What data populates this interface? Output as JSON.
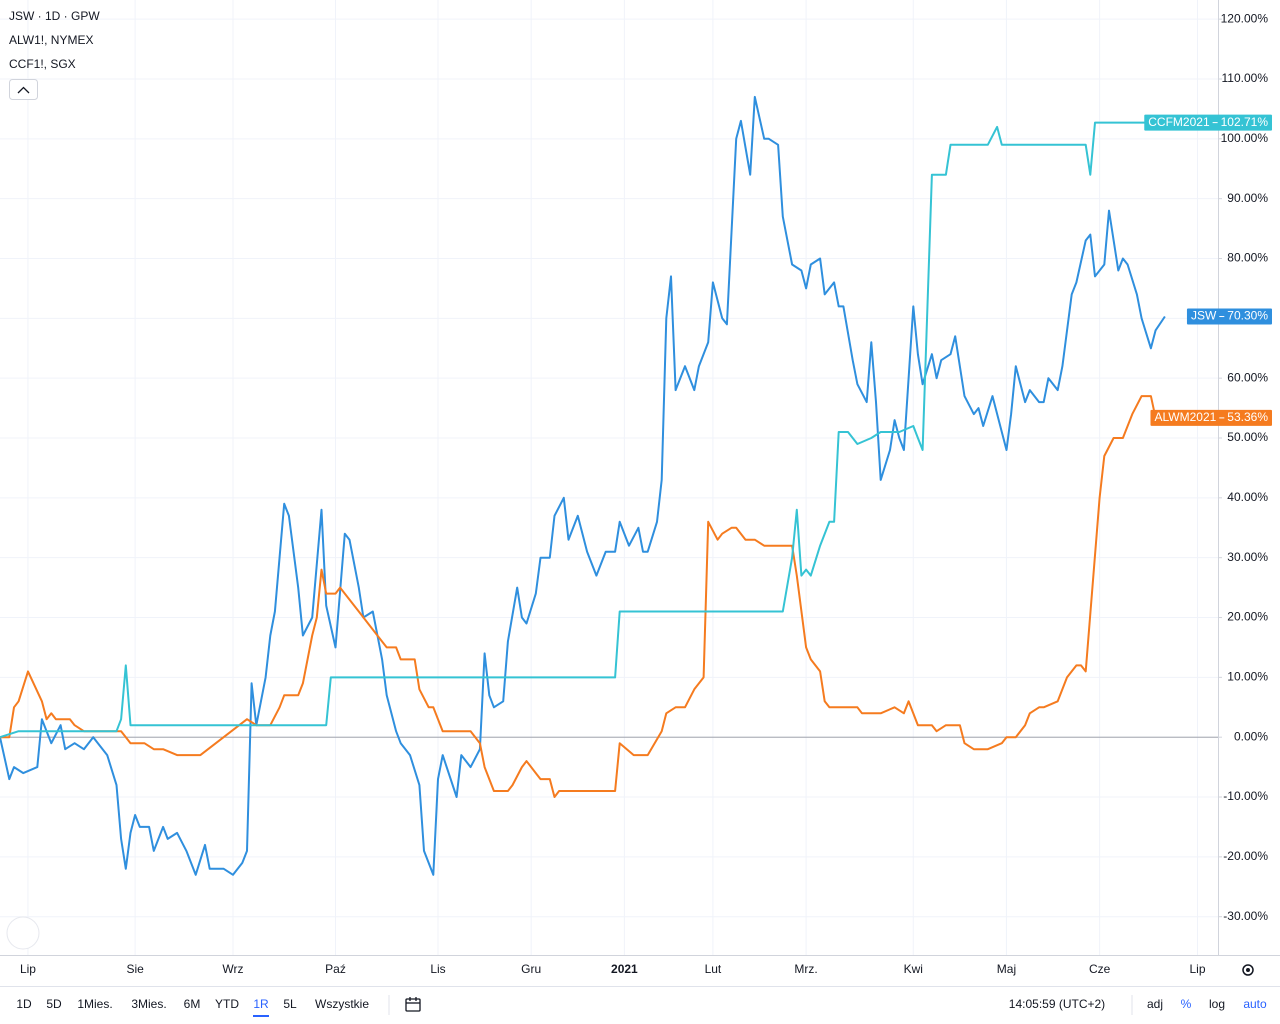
{
  "chart_data": {
    "type": "line",
    "legend": [
      "JSW · 1D · GPW",
      "ALW1!, NYMEX",
      "CCF1!, SGX"
    ],
    "xlim": [
      0,
      261.4
    ],
    "xticks": [
      {
        "value": 6,
        "label": "Lip"
      },
      {
        "value": 29,
        "label": "Sie"
      },
      {
        "value": 50,
        "label": "Wrz"
      },
      {
        "value": 72,
        "label": "Paź"
      },
      {
        "value": 94,
        "label": "Lis"
      },
      {
        "value": 114,
        "label": "Gru"
      },
      {
        "value": 134,
        "label": "2021"
      },
      {
        "value": 153,
        "label": "Lut"
      },
      {
        "value": 173,
        "label": "Mrz."
      },
      {
        "value": 196,
        "label": "Kwi"
      },
      {
        "value": 216,
        "label": "Maj"
      },
      {
        "value": 236,
        "label": "Cze"
      },
      {
        "value": 257,
        "label": "Lip"
      }
    ],
    "ylim": [
      -36.4,
      123.2
    ],
    "yticks": [
      {
        "value": 120,
        "label": "120.00%"
      },
      {
        "value": 110,
        "label": "110.00%"
      },
      {
        "value": 100,
        "label": "100.00%"
      },
      {
        "value": 90,
        "label": "90.00%"
      },
      {
        "value": 80,
        "label": "80.00%"
      },
      {
        "value": 70,
        "label": "70.00%"
      },
      {
        "value": 60,
        "label": "60.00%"
      },
      {
        "value": 50,
        "label": "50.00%"
      },
      {
        "value": 40,
        "label": "40.00%"
      },
      {
        "value": 30,
        "label": "30.00%"
      },
      {
        "value": 20,
        "label": "20.00%"
      },
      {
        "value": 10,
        "label": "10.00%"
      },
      {
        "value": 0,
        "label": "0.00%"
      },
      {
        "value": -10,
        "label": "-10.00%"
      },
      {
        "value": -20,
        "label": "-20.00%"
      },
      {
        "value": -30,
        "label": "-30.00%"
      }
    ],
    "grid": true,
    "series": [
      {
        "name": "JSW",
        "color": "#2f8fde",
        "end_label": "70.30%",
        "x": [
          0,
          2,
          3,
          5,
          8,
          9,
          11,
          13,
          14,
          16,
          18,
          20,
          23,
          25,
          26,
          27,
          28,
          29,
          30,
          32,
          33,
          35,
          36,
          38,
          40,
          42,
          44,
          45,
          48,
          50,
          52,
          53,
          54,
          55,
          57,
          58,
          59,
          61,
          62,
          64,
          65,
          67,
          69,
          70,
          72,
          74,
          75,
          77,
          78,
          80,
          82,
          83,
          85,
          86,
          88,
          90,
          91,
          93,
          94,
          95,
          98,
          99,
          101,
          103,
          104,
          105,
          106,
          108,
          109,
          111,
          112,
          113,
          115,
          116,
          118,
          119,
          121,
          122,
          124,
          126,
          128,
          130,
          132,
          133,
          135,
          137,
          138,
          139,
          141,
          142,
          143,
          144,
          145,
          147,
          149,
          150,
          152,
          153,
          155,
          156,
          158,
          159,
          161,
          162,
          164,
          165,
          167,
          168,
          170,
          172,
          173,
          174,
          176,
          177,
          179,
          180,
          181,
          183,
          184,
          186,
          187,
          188,
          189,
          191,
          192,
          193,
          194,
          196,
          197,
          198,
          200,
          201,
          202,
          204,
          205,
          207,
          209,
          210,
          211,
          213,
          215,
          216,
          217,
          218,
          220,
          221,
          223,
          224,
          225,
          227,
          228,
          230,
          231,
          233,
          234,
          235,
          237,
          238,
          240,
          241,
          242,
          244,
          245,
          247,
          248,
          250
        ],
        "values": [
          0,
          -7,
          -5,
          -6,
          -5,
          3,
          -1,
          2,
          -2,
          -1,
          -2,
          0,
          -3,
          -8,
          -17,
          -22,
          -16,
          -13,
          -15,
          -15,
          -19,
          -15,
          -17,
          -16,
          -19,
          -23,
          -18,
          -22,
          -22,
          -23,
          -21,
          -19,
          9,
          2,
          10,
          17,
          21,
          39,
          37,
          25,
          17,
          20,
          38,
          22,
          15,
          34,
          33,
          25,
          20,
          21,
          13,
          7,
          1,
          -1,
          -3,
          -8,
          -19,
          -23,
          -7,
          -3,
          -10,
          -3,
          -5,
          -2,
          14,
          7,
          5,
          6,
          16,
          25,
          20,
          19,
          24,
          30,
          30,
          37,
          40,
          33,
          37,
          31,
          27,
          31,
          31,
          36,
          32,
          35,
          31,
          31,
          36,
          43,
          70,
          77,
          58,
          62,
          58,
          62,
          66,
          76,
          70,
          69,
          100,
          103,
          94,
          107,
          100,
          100,
          99,
          87,
          79,
          78,
          75,
          79,
          80,
          74,
          76,
          72,
          72,
          63,
          59,
          56,
          66,
          56,
          43,
          48,
          53,
          50,
          48,
          72,
          64,
          59,
          64,
          60,
          63,
          64,
          67,
          57,
          54,
          55,
          52,
          57,
          51,
          48,
          54,
          62,
          56,
          58,
          56,
          56,
          60,
          58,
          62,
          74,
          76,
          83,
          84,
          77,
          79,
          88,
          78,
          80,
          79,
          74,
          70,
          65,
          68,
          70.3
        ]
      },
      {
        "name": "ALWM2021",
        "color": "#f57b1f",
        "end_label": "53.36%",
        "x": [
          0,
          2,
          3,
          4,
          6,
          9,
          10,
          11,
          12,
          15,
          16,
          18,
          20,
          23,
          25,
          26,
          28,
          31,
          33,
          35,
          38,
          43,
          53,
          55,
          58,
          60,
          61,
          64,
          65,
          67,
          68,
          69,
          70,
          72,
          73,
          75,
          77,
          79,
          81,
          83,
          85,
          86,
          89,
          90,
          92,
          93,
          94,
          95,
          101,
          103,
          104,
          106,
          109,
          110,
          112,
          113,
          114,
          115,
          116,
          118,
          119,
          120,
          132,
          133,
          136,
          139,
          142,
          143,
          145,
          147,
          149,
          151,
          152,
          154,
          155,
          157,
          158,
          160,
          162,
          164,
          168,
          170,
          171,
          173,
          174,
          176,
          177,
          178,
          180,
          181,
          184,
          185,
          189,
          192,
          194,
          195,
          197,
          200,
          201,
          203,
          206,
          207,
          209,
          212,
          215,
          216,
          218,
          220,
          221,
          223,
          224,
          227,
          229,
          231,
          232,
          233,
          236,
          237,
          239,
          241,
          243,
          245,
          247,
          248
        ],
        "values": [
          0,
          0,
          5,
          6,
          11,
          6,
          3,
          4,
          3,
          3,
          2,
          1,
          1,
          1,
          1,
          1,
          -1,
          -1,
          -2,
          -2,
          -3,
          -3,
          3,
          2,
          2,
          5,
          7,
          7,
          9,
          17,
          20,
          28,
          24,
          24,
          25,
          23,
          21,
          19,
          17,
          15,
          15,
          13,
          13,
          8,
          5,
          5,
          3,
          1,
          1,
          -1,
          -5,
          -9,
          -9,
          -8,
          -5,
          -4,
          -5,
          -6,
          -7,
          -7,
          -10,
          -9,
          -9,
          -1,
          -3,
          -3,
          1,
          4,
          5,
          5,
          8,
          10,
          36,
          33,
          34,
          35,
          35,
          33,
          33,
          32,
          32,
          32,
          27,
          15,
          13,
          11,
          6,
          5,
          5,
          5,
          5,
          4,
          4,
          5,
          4,
          6,
          2,
          2,
          1,
          2,
          2,
          -1,
          -2,
          -2,
          -1,
          0,
          0,
          2,
          4,
          5,
          5,
          6,
          10,
          12,
          12,
          11,
          40,
          47,
          50,
          50,
          54,
          57,
          57,
          53.36
        ]
      },
      {
        "name": "CCFM2021",
        "color": "#35c3d4",
        "end_label": "102.71%",
        "x": [
          0,
          4,
          25,
          26,
          27,
          28,
          70,
          71,
          132,
          133,
          168,
          170,
          171,
          172,
          173,
          174,
          176,
          178,
          179,
          180,
          182,
          184,
          187,
          189,
          193,
          196,
          197,
          198,
          200,
          203,
          204,
          212,
          214,
          215,
          233,
          234,
          235,
          246
        ],
        "values": [
          0,
          1,
          1,
          3,
          12,
          2,
          2,
          10,
          10,
          21,
          21,
          30,
          38,
          27,
          28,
          27,
          32,
          36,
          36,
          51,
          51,
          49,
          50,
          51,
          51,
          52,
          50,
          48,
          94,
          94,
          99,
          99,
          102,
          99,
          99,
          94,
          102.71,
          102.71
        ]
      }
    ]
  },
  "toolbar": {
    "ranges": [
      "1D",
      "5D",
      "1Mies.",
      "3Mies.",
      "6M",
      "YTD",
      "1R",
      "5L",
      "Wszystkie"
    ],
    "active": "1R",
    "time": "14:05:59 (UTC+2)",
    "options": [
      "adj",
      "%",
      "log",
      "auto"
    ],
    "active_options": [
      "%",
      "auto"
    ]
  }
}
